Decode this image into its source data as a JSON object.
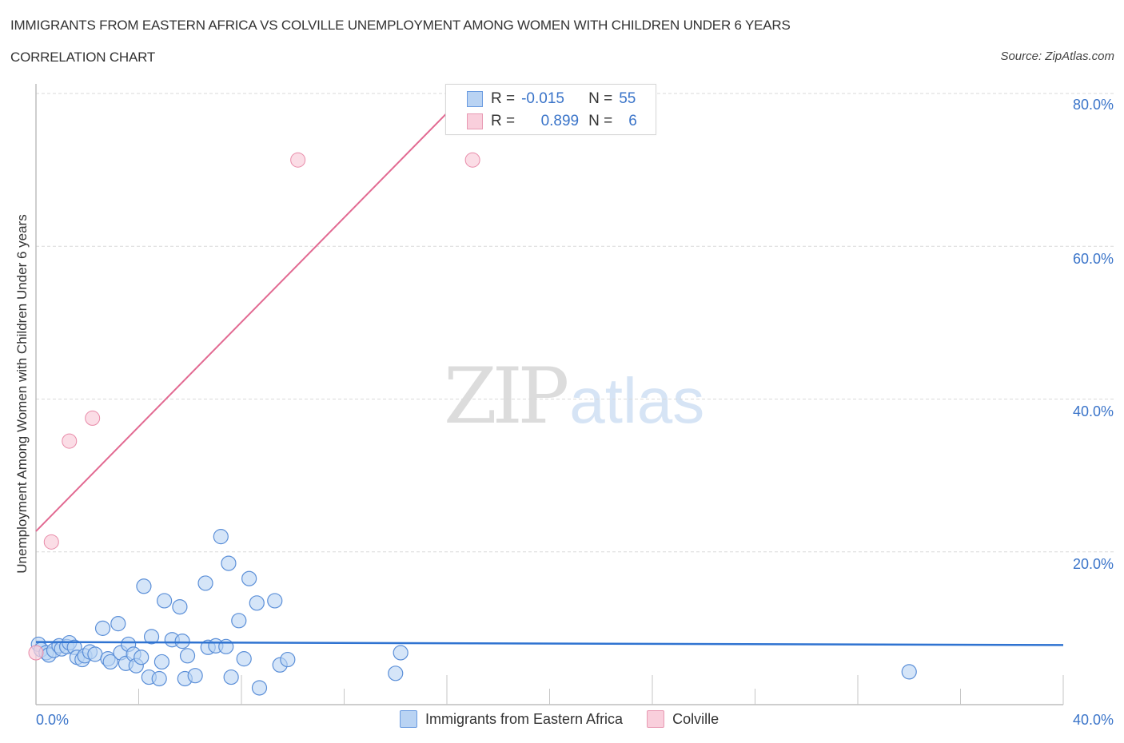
{
  "header": {
    "title": "IMMIGRANTS FROM EASTERN AFRICA VS COLVILLE UNEMPLOYMENT AMONG WOMEN WITH CHILDREN UNDER 6 YEARS",
    "subtitle": "CORRELATION CHART",
    "source": "Source: ZipAtlas.com"
  },
  "watermark": {
    "zip": "ZIP",
    "atlas": "atlas"
  },
  "legend": {
    "rows": [
      {
        "r_label": "R =",
        "r_value": "-0.015",
        "n_label": "N =",
        "n_value": "55"
      },
      {
        "r_label": "R =",
        "r_value": "0.899",
        "n_label": "N =",
        "n_value": "6"
      }
    ],
    "series": [
      {
        "label": "Immigrants from Eastern Africa"
      },
      {
        "label": "Colville"
      }
    ]
  },
  "axes": {
    "ylabel": "Unemployment Among Women with Children Under 6 years",
    "y_ticks": [
      "80.0%",
      "60.0%",
      "40.0%",
      "20.0%"
    ],
    "x_ticks": [
      "0.0%",
      "40.0%"
    ]
  },
  "colors": {
    "blue_fill": "#b9d3f3",
    "blue_stroke": "#5b8fd8",
    "blue_line": "#2f73d1",
    "pink_fill": "#f9cfdc",
    "pink_stroke": "#e88aa8",
    "pink_line": "#e26a92",
    "tick_text": "#3a74c9"
  },
  "chart_data": {
    "type": "scatter",
    "title": "IMMIGRANTS FROM EASTERN AFRICA VS COLVILLE UNEMPLOYMENT AMONG WOMEN WITH CHILDREN UNDER 6 YEARS",
    "subtitle": "CORRELATION CHART",
    "xlabel": "",
    "ylabel": "Unemployment Among Women with Children Under 6 years",
    "xlim": [
      0,
      40
    ],
    "ylim": [
      0,
      80
    ],
    "x_tick_labels": [
      "0.0%",
      "40.0%"
    ],
    "y_tick_labels": [
      "20.0%",
      "40.0%",
      "60.0%",
      "80.0%"
    ],
    "grid": {
      "horizontal_dashed": true
    },
    "legend_position": "bottom-center",
    "series": [
      {
        "name": "Immigrants from Eastern Africa",
        "R": -0.015,
        "N": 55,
        "trendline": {
          "x": [
            0,
            40
          ],
          "y": [
            8.2,
            7.8
          ]
        },
        "points": [
          [
            0.1,
            7.9
          ],
          [
            0.2,
            7.2
          ],
          [
            0.4,
            6.8
          ],
          [
            0.5,
            6.5
          ],
          [
            0.7,
            7.1
          ],
          [
            0.9,
            7.7
          ],
          [
            1.0,
            7.3
          ],
          [
            1.2,
            7.6
          ],
          [
            1.3,
            8.1
          ],
          [
            1.5,
            7.5
          ],
          [
            1.6,
            6.2
          ],
          [
            1.8,
            5.9
          ],
          [
            1.9,
            6.4
          ],
          [
            2.1,
            6.9
          ],
          [
            2.3,
            6.6
          ],
          [
            2.6,
            10.0
          ],
          [
            2.8,
            6.0
          ],
          [
            2.9,
            5.6
          ],
          [
            3.2,
            10.6
          ],
          [
            3.3,
            6.8
          ],
          [
            3.5,
            5.4
          ],
          [
            3.6,
            7.9
          ],
          [
            3.8,
            6.6
          ],
          [
            3.9,
            5.1
          ],
          [
            4.1,
            6.2
          ],
          [
            4.2,
            15.5
          ],
          [
            4.4,
            3.6
          ],
          [
            4.5,
            8.9
          ],
          [
            4.8,
            3.4
          ],
          [
            4.9,
            5.6
          ],
          [
            5.0,
            13.6
          ],
          [
            5.3,
            8.5
          ],
          [
            5.6,
            12.8
          ],
          [
            5.7,
            8.3
          ],
          [
            5.8,
            3.4
          ],
          [
            5.9,
            6.4
          ],
          [
            6.2,
            3.8
          ],
          [
            6.6,
            15.9
          ],
          [
            6.7,
            7.5
          ],
          [
            7.0,
            7.7
          ],
          [
            7.2,
            22.0
          ],
          [
            7.4,
            7.6
          ],
          [
            7.5,
            18.5
          ],
          [
            7.6,
            3.6
          ],
          [
            7.9,
            11.0
          ],
          [
            8.1,
            6.0
          ],
          [
            8.3,
            16.5
          ],
          [
            8.6,
            13.3
          ],
          [
            8.7,
            2.2
          ],
          [
            9.3,
            13.6
          ],
          [
            9.5,
            5.2
          ],
          [
            9.8,
            5.9
          ],
          [
            14.0,
            4.1
          ],
          [
            14.2,
            6.8
          ],
          [
            34.0,
            4.3
          ]
        ]
      },
      {
        "name": "Colville",
        "R": 0.899,
        "N": 6,
        "trendline": {
          "x": [
            0,
            16.75
          ],
          "y": [
            22.7,
            80
          ]
        },
        "points": [
          [
            0.0,
            6.8
          ],
          [
            0.6,
            21.3
          ],
          [
            1.3,
            34.5
          ],
          [
            2.2,
            37.5
          ],
          [
            10.2,
            71.3
          ],
          [
            17.0,
            71.3
          ]
        ]
      }
    ]
  }
}
